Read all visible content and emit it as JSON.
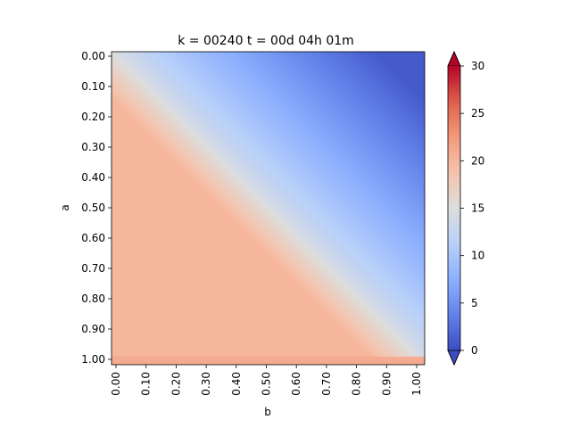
{
  "chart_data": {
    "type": "heatmap",
    "title": "k = 00240 t = 00d 04h 01m",
    "xlabel": "b",
    "ylabel": "a",
    "x_range": [
      0.0,
      1.0
    ],
    "y_range": [
      0.0,
      1.0
    ],
    "y_inverted": true,
    "x_ticks": [
      "0.00",
      "0.10",
      "0.20",
      "0.30",
      "0.40",
      "0.50",
      "0.60",
      "0.70",
      "0.80",
      "0.90",
      "1.00"
    ],
    "y_ticks": [
      "0.00",
      "0.10",
      "0.20",
      "0.30",
      "0.40",
      "0.50",
      "0.60",
      "0.70",
      "0.80",
      "0.90",
      "1.00"
    ],
    "colormap": "coolwarm",
    "colorbar": {
      "vmin": 0,
      "vmax": 30,
      "ticks": [
        "0",
        "5",
        "10",
        "15",
        "20",
        "25",
        "30"
      ],
      "extend": "both"
    },
    "description_values": {
      "lower_left_region_value": 20,
      "diagonal_value": 15,
      "upper_right_region_value": 1,
      "bottom_edge_value": 21
    },
    "grid": false,
    "legend": "none"
  }
}
